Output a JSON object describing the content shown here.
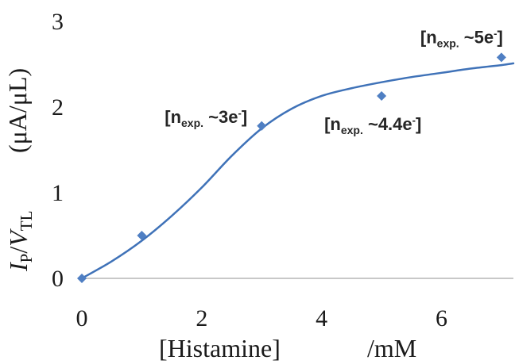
{
  "chart_data": {
    "type": "scatter",
    "xlabel": "[Histamine]",
    "xunit": "/mM",
    "ylabel_main": "I",
    "ylabel_sub1": "P",
    "ylabel_slash": "/",
    "ylabel_v": "V",
    "ylabel_sub2": "TL",
    "yunit": "(μA/μL)",
    "xlim": [
      0,
      7.2
    ],
    "ylim": [
      0,
      3
    ],
    "xticks": [
      "0",
      "2",
      "4",
      "6"
    ],
    "xtick_values": [
      0,
      2,
      4,
      6
    ],
    "yticks": [
      "0",
      "1",
      "2",
      "3"
    ],
    "ytick_values": [
      0,
      1,
      2,
      3
    ],
    "grid": false,
    "colors": {
      "marker": "#4f7fc3",
      "curve": "#3f72b8",
      "axis": "#c8c8c8"
    },
    "points": [
      {
        "x": 0,
        "y": 0
      },
      {
        "x": 1,
        "y": 0.5
      },
      {
        "x": 3,
        "y": 1.78
      },
      {
        "x": 5,
        "y": 2.13
      },
      {
        "x": 7,
        "y": 2.58
      }
    ],
    "fit_curve": [
      {
        "x": 0,
        "y": 0
      },
      {
        "x": 0.5,
        "y": 0.2
      },
      {
        "x": 1,
        "y": 0.44
      },
      {
        "x": 1.5,
        "y": 0.73
      },
      {
        "x": 2,
        "y": 1.06
      },
      {
        "x": 2.5,
        "y": 1.43
      },
      {
        "x": 3,
        "y": 1.75
      },
      {
        "x": 3.5,
        "y": 1.98
      },
      {
        "x": 4,
        "y": 2.13
      },
      {
        "x": 4.5,
        "y": 2.22
      },
      {
        "x": 5,
        "y": 2.29
      },
      {
        "x": 5.5,
        "y": 2.35
      },
      {
        "x": 6,
        "y": 2.4
      },
      {
        "x": 6.5,
        "y": 2.45
      },
      {
        "x": 7,
        "y": 2.49
      },
      {
        "x": 7.2,
        "y": 2.51
      }
    ],
    "annotations": [
      {
        "prefix": "[n",
        "sub": "exp.",
        "mid": " ~3e",
        "sup": "-",
        "suffix": "]",
        "x": 3,
        "y": 1.78
      },
      {
        "prefix": "[n",
        "sub": "exp.",
        "mid": " ~4.4e",
        "sup": "-",
        "suffix": "]",
        "x": 5,
        "y": 2.13
      },
      {
        "prefix": "[n",
        "sub": "exp.",
        "mid": " ~5e",
        "sup": "-",
        "suffix": "]",
        "x": 7,
        "y": 2.58
      }
    ]
  }
}
